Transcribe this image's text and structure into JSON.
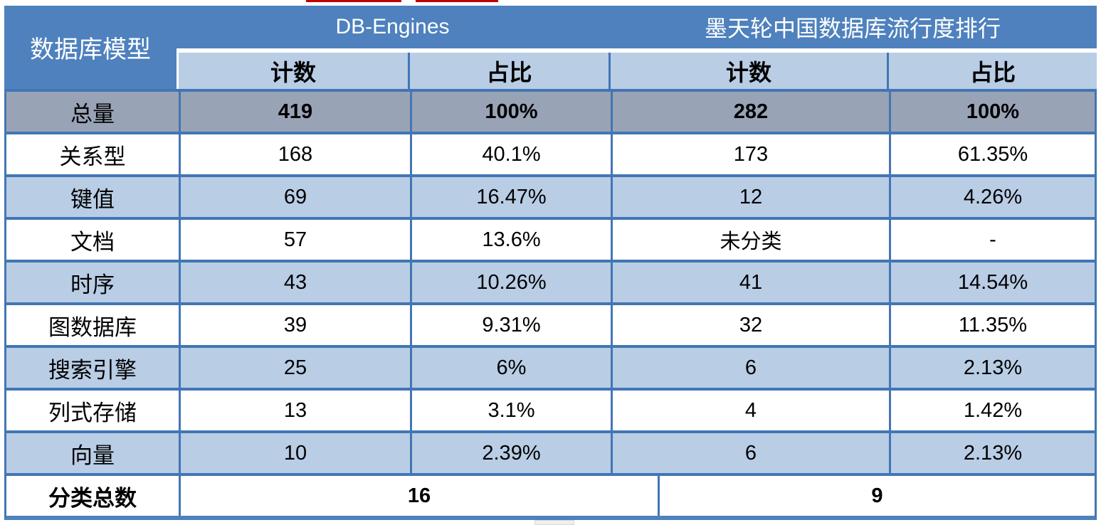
{
  "colors": {
    "header_blue": "#4e81bd",
    "band_light_blue": "#b9cde5",
    "total_row_gray": "#99a3b6",
    "border_blue": "#4276b4",
    "artifact_red": "#c00000",
    "text_dark": "#000000",
    "header_text": "#ffffff"
  },
  "chart_data": {
    "type": "table",
    "corner_header": "数据库模型",
    "groups": [
      {
        "label": "DB-Engines",
        "sub_columns": [
          "计数",
          "占比"
        ]
      },
      {
        "label": "墨天轮中国数据库流行度排行",
        "sub_columns": [
          "计数",
          "占比"
        ]
      }
    ],
    "rows": [
      {
        "label": "总量",
        "emphasis": "total",
        "values": [
          "419",
          "100%",
          "282",
          "100%"
        ]
      },
      {
        "label": "关系型",
        "emphasis": "none",
        "values": [
          "168",
          "40.1%",
          "173",
          "61.35%"
        ]
      },
      {
        "label": "键值",
        "emphasis": "none",
        "values": [
          "69",
          "16.47%",
          "12",
          "4.26%"
        ]
      },
      {
        "label": "文档",
        "emphasis": "none",
        "values": [
          "57",
          "13.6%",
          "未分类",
          "-"
        ]
      },
      {
        "label": "时序",
        "emphasis": "none",
        "values": [
          "43",
          "10.26%",
          "41",
          "14.54%"
        ]
      },
      {
        "label": "图数据库",
        "emphasis": "none",
        "values": [
          "39",
          "9.31%",
          "32",
          "11.35%"
        ]
      },
      {
        "label": "搜索引擎",
        "emphasis": "none",
        "values": [
          "25",
          "6%",
          "6",
          "2.13%"
        ]
      },
      {
        "label": "列式存储",
        "emphasis": "none",
        "values": [
          "13",
          "3.1%",
          "4",
          "1.42%"
        ]
      },
      {
        "label": "向量",
        "emphasis": "none",
        "values": [
          "10",
          "2.39%",
          "6",
          "2.13%"
        ]
      }
    ],
    "footer_row": {
      "label": "分类总数",
      "merged_values": [
        "16",
        "9"
      ]
    }
  }
}
